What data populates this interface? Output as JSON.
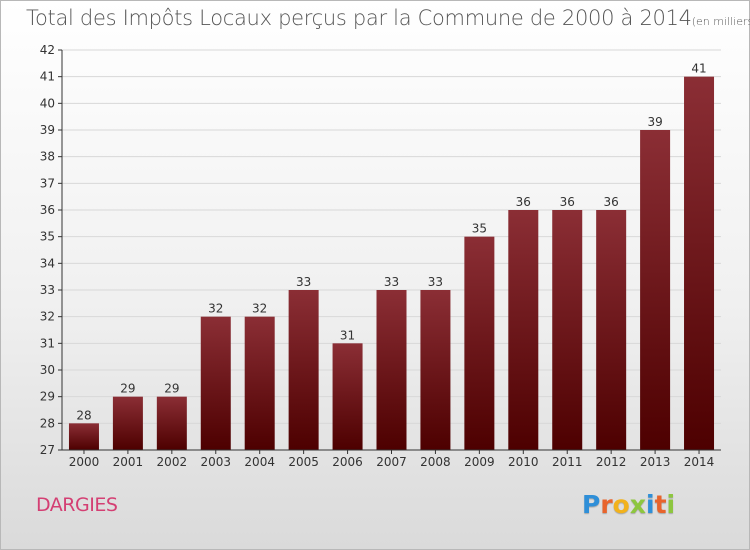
{
  "title": "Total des Impôts Locaux perçus par la Commune de 2000 à 2014",
  "unit": "(en milliers d'€)",
  "commune": "DARGIES",
  "logo": {
    "letters": [
      "P",
      "r",
      "o",
      "x",
      "i",
      "t",
      "i"
    ],
    "colors": [
      "#2f8fd8",
      "#e8642c",
      "#f2b21c",
      "#8dc63f",
      "#2f8fd8",
      "#e8642c",
      "#8dc63f"
    ]
  },
  "colors": {
    "bar_top": "#8b2e35",
    "bar_bottom": "#4d0000",
    "axis": "#333333",
    "grid": "#d8d8d8",
    "commune": "#d43f73"
  },
  "chart_data": {
    "type": "bar",
    "title": "Total des Impôts Locaux perçus par la Commune de 2000 à 2014",
    "xlabel": "",
    "ylabel": "en milliers d'€",
    "ylim": [
      27,
      42
    ],
    "yticks": [
      27,
      28,
      29,
      30,
      31,
      32,
      33,
      34,
      35,
      36,
      37,
      38,
      39,
      40,
      41,
      42
    ],
    "categories": [
      "2000",
      "2001",
      "2002",
      "2003",
      "2004",
      "2005",
      "2006",
      "2007",
      "2008",
      "2009",
      "2010",
      "2011",
      "2012",
      "2013",
      "2014"
    ],
    "values": [
      28,
      29,
      29,
      32,
      32,
      33,
      31,
      33,
      33,
      35,
      36,
      36,
      36,
      39,
      41
    ],
    "grid": true
  }
}
